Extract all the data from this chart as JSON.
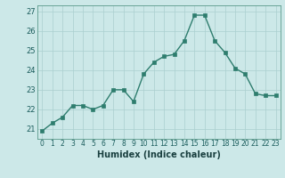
{
  "x": [
    0,
    1,
    2,
    3,
    4,
    5,
    6,
    7,
    8,
    9,
    10,
    11,
    12,
    13,
    14,
    15,
    16,
    17,
    18,
    19,
    20,
    21,
    22,
    23
  ],
  "y": [
    20.9,
    21.3,
    21.6,
    22.2,
    22.2,
    22.0,
    22.2,
    23.0,
    23.0,
    22.4,
    23.8,
    24.4,
    24.7,
    24.8,
    25.5,
    26.8,
    26.8,
    25.5,
    24.9,
    24.1,
    23.8,
    22.8,
    22.7,
    22.7
  ],
  "line_color": "#2e7d6e",
  "marker": "s",
  "marker_size": 2.5,
  "bg_color": "#cce8e8",
  "grid_color": "#aacfcf",
  "xlabel": "Humidex (Indice chaleur)",
  "ylim": [
    20.5,
    27.3
  ],
  "xlim": [
    -0.5,
    23.5
  ],
  "yticks": [
    21,
    22,
    23,
    24,
    25,
    26,
    27
  ],
  "xtick_labels": [
    "0",
    "1",
    "2",
    "3",
    "4",
    "5",
    "6",
    "7",
    "8",
    "9",
    "10",
    "11",
    "12",
    "13",
    "14",
    "15",
    "16",
    "17",
    "18",
    "19",
    "20",
    "21",
    "22",
    "23"
  ],
  "xlabel_fontsize": 7,
  "tick_fontsize": 5.5,
  "ytick_fontsize": 6
}
